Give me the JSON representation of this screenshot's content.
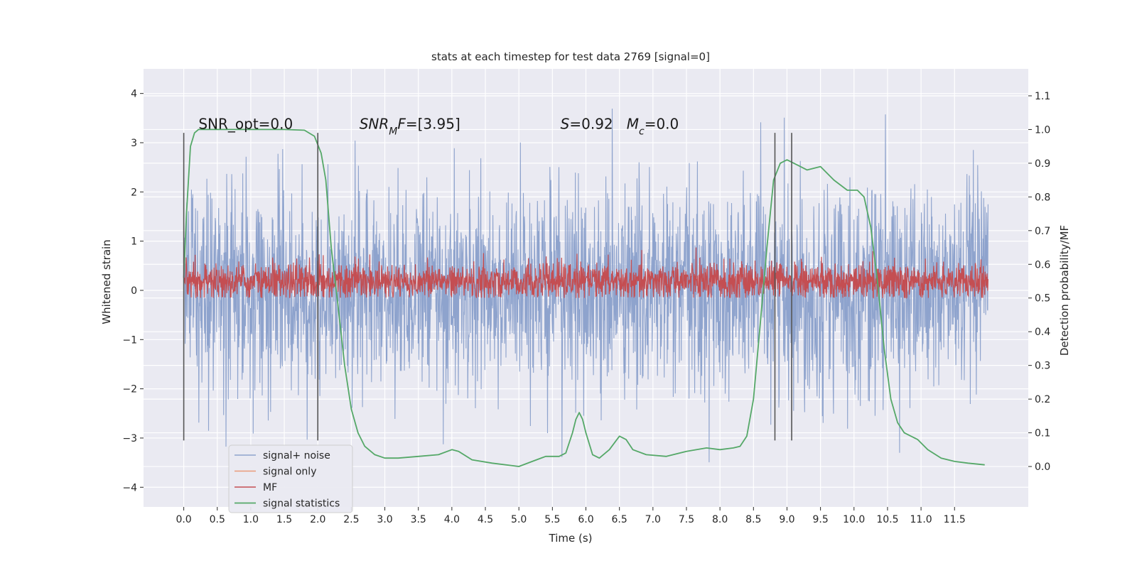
{
  "chart_data": {
    "type": "line",
    "title": "stats at each timestep for test data 2769 [signal=0]",
    "xlabel": "Time (s)",
    "ylabel": "Whitened strain",
    "y2label": "Detection probability/MF",
    "xlim": [
      -0.6,
      12.6
    ],
    "ylim": [
      -4.4,
      4.5
    ],
    "y2lim": [
      -0.12,
      1.18
    ],
    "xticks": [
      "0.0",
      "0.5",
      "1.0",
      "1.5",
      "2.0",
      "2.5",
      "3.0",
      "3.5",
      "4.0",
      "4.5",
      "5.0",
      "5.5",
      "6.0",
      "6.5",
      "7.0",
      "7.5",
      "8.0",
      "8.5",
      "9.0",
      "9.5",
      "10.0",
      "10.5",
      "11.0",
      "11.5"
    ],
    "yticks": [
      "4",
      "3",
      "2",
      "1",
      "0",
      "−1",
      "−2",
      "−3",
      "−4"
    ],
    "y2ticks": [
      "1.1",
      "1.0",
      "0.9",
      "0.8",
      "0.7",
      "0.6",
      "0.5",
      "0.4",
      "0.3",
      "0.2",
      "0.1",
      "0.0"
    ],
    "grid": true,
    "colors": {
      "signal_noise": "#8ea3cd",
      "signal_only": "#e99a78",
      "mf": "#c44e52",
      "stats": "#55a868",
      "vline": "#555555",
      "bg": "#eaeaf2"
    },
    "series": [
      {
        "name": "signal+ noise",
        "axis": "left",
        "kind": "noise",
        "x_range": [
          0.0,
          12.0
        ],
        "center": 0.0,
        "typical_range": [
          -2.0,
          2.0
        ],
        "extremes": [
          -3.9,
          4.1
        ]
      },
      {
        "name": "signal only",
        "axis": "left",
        "kind": "flat",
        "values": []
      },
      {
        "name": "MF",
        "axis": "right",
        "kind": "noise",
        "x_range": [
          0.0,
          12.0
        ],
        "center": 0.55,
        "typical_range": [
          0.5,
          0.62
        ],
        "extremes": [
          0.5,
          0.65
        ]
      },
      {
        "name": "signal statistics",
        "axis": "right",
        "x": [
          0.0,
          0.04,
          0.1,
          0.16,
          0.22,
          0.3,
          0.5,
          1.0,
          1.5,
          1.8,
          1.95,
          2.05,
          2.12,
          2.2,
          2.3,
          2.4,
          2.5,
          2.6,
          2.7,
          2.85,
          3.0,
          3.2,
          3.5,
          3.8,
          4.0,
          4.1,
          4.3,
          4.6,
          5.0,
          5.2,
          5.4,
          5.6,
          5.7,
          5.8,
          5.85,
          5.9,
          5.95,
          6.0,
          6.1,
          6.2,
          6.35,
          6.5,
          6.6,
          6.7,
          6.9,
          7.2,
          7.5,
          7.8,
          8.0,
          8.2,
          8.3,
          8.4,
          8.5,
          8.6,
          8.7,
          8.8,
          8.9,
          9.0,
          9.2,
          9.3,
          9.5,
          9.7,
          9.9,
          10.05,
          10.15,
          10.25,
          10.35,
          10.45,
          10.55,
          10.65,
          10.75,
          10.85,
          10.95,
          11.1,
          11.3,
          11.5,
          11.7,
          11.95
        ],
        "y": [
          0.56,
          0.75,
          0.95,
          0.99,
          1.0,
          1.0,
          1.0,
          1.0,
          1.0,
          0.998,
          0.98,
          0.93,
          0.85,
          0.65,
          0.48,
          0.3,
          0.17,
          0.1,
          0.06,
          0.035,
          0.025,
          0.025,
          0.03,
          0.035,
          0.05,
          0.045,
          0.02,
          0.01,
          0.0,
          0.015,
          0.03,
          0.03,
          0.04,
          0.1,
          0.14,
          0.16,
          0.14,
          0.1,
          0.035,
          0.025,
          0.05,
          0.09,
          0.08,
          0.05,
          0.035,
          0.03,
          0.045,
          0.055,
          0.05,
          0.055,
          0.06,
          0.09,
          0.2,
          0.42,
          0.65,
          0.85,
          0.9,
          0.91,
          0.89,
          0.88,
          0.89,
          0.85,
          0.82,
          0.82,
          0.8,
          0.71,
          0.55,
          0.35,
          0.2,
          0.13,
          0.1,
          0.09,
          0.08,
          0.05,
          0.025,
          0.015,
          0.01,
          0.005
        ]
      }
    ],
    "vlines": [
      0.0,
      2.0,
      8.82,
      9.07
    ],
    "annotations": [
      {
        "parts": [
          {
            "t": "SNR_opt=0.0",
            "italic": false
          }
        ],
        "x": 0.22,
        "y2": 1.0
      },
      {
        "parts": [
          {
            "t": "SNR",
            "italic": true
          },
          {
            "t": "M",
            "italic": true,
            "sub": true
          },
          {
            "t": "F",
            "italic": true
          },
          {
            "t": "=[3.95]",
            "italic": false
          }
        ],
        "x": 2.62,
        "y2": 1.0
      },
      {
        "parts": [
          {
            "t": "S",
            "italic": true
          },
          {
            "t": "=0.92   ",
            "italic": false
          },
          {
            "t": "M",
            "italic": true
          },
          {
            "t": "c",
            "italic": true,
            "sub": true
          },
          {
            "t": "=0.0",
            "italic": false
          }
        ],
        "x": 5.62,
        "y2": 1.0
      }
    ],
    "legend": {
      "placement": "lower-left",
      "entries": [
        "signal+ noise",
        "signal only",
        "MF",
        "signal statistics"
      ]
    }
  }
}
